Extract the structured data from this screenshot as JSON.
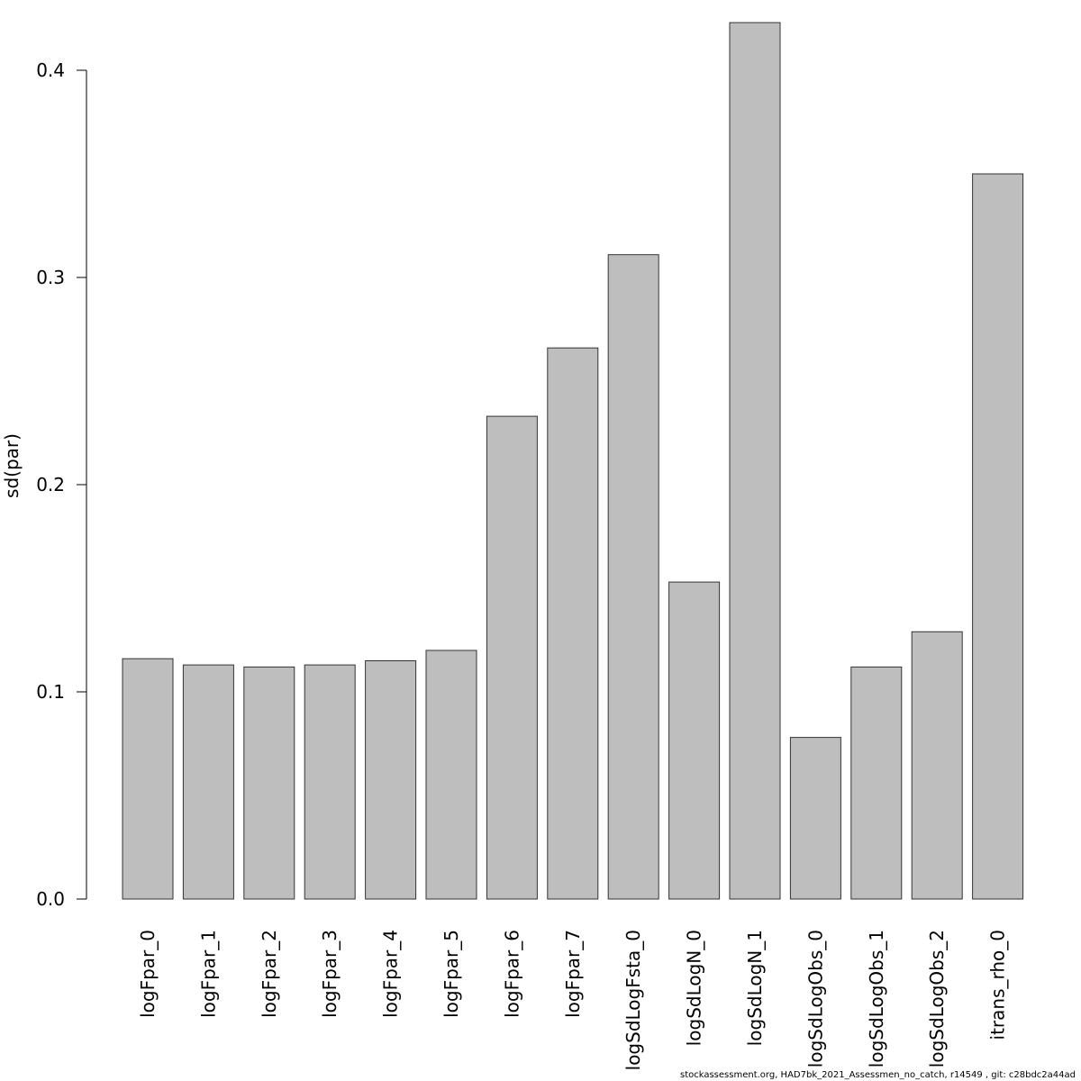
{
  "chart_data": {
    "type": "bar",
    "categories": [
      "logFpar_0",
      "logFpar_1",
      "logFpar_2",
      "logFpar_3",
      "logFpar_4",
      "logFpar_5",
      "logFpar_6",
      "logFpar_7",
      "logSdLogFsta_0",
      "logSdLogN_0",
      "logSdLogN_1",
      "logSdLogObs_0",
      "logSdLogObs_1",
      "logSdLogObs_2",
      "itrans_rho_0"
    ],
    "values": [
      0.116,
      0.113,
      0.112,
      0.113,
      0.115,
      0.12,
      0.233,
      0.266,
      0.311,
      0.153,
      0.423,
      0.078,
      0.112,
      0.129,
      0.35
    ],
    "xlabel": "",
    "ylabel": "sd(par)",
    "ylim": [
      0.0,
      0.4
    ],
    "yticks": [
      0.0,
      0.1,
      0.2,
      0.3,
      0.4
    ],
    "ytick_labels": [
      "0.0",
      "0.1",
      "0.2",
      "0.3",
      "0.4"
    ],
    "grid": false,
    "bar_color": "#bebebe",
    "bar_edge_color": "#333333"
  },
  "footer_text": "stockassessment.org, HAD7bk_2021_Assessmen_no_catch, r14549 , git: c28bdc2a44ad"
}
